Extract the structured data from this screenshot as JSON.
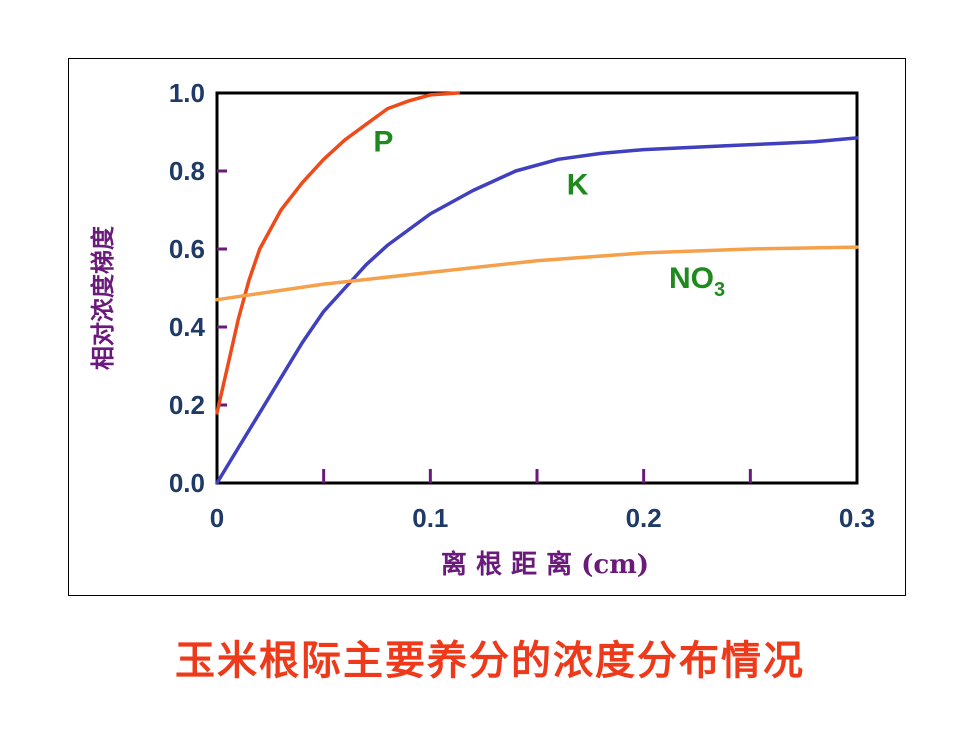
{
  "colors": {
    "P": "#ee4a1a",
    "K": "#3f3fbf",
    "NO3": "#f5a04a",
    "label_green": "#1e8a1e",
    "axis_title": "#6a1a7a",
    "tick_label": "#1f3a66",
    "tick_mark": "#6a1a7a",
    "caption": "#ee3a1a"
  },
  "caption": "玉米根际主要养分的浓度分布情况",
  "chart_data": {
    "type": "line",
    "xlabel": "离 根 距 离 (cm)",
    "ylabel": "相对浓度梯度",
    "xlim": [
      0,
      0.3
    ],
    "ylim": [
      0,
      1.0
    ],
    "x_ticks": [
      "0",
      "0.1",
      "0.2",
      "0.3"
    ],
    "y_ticks": [
      "0.0",
      "0.2",
      "0.4",
      "0.6",
      "0.8",
      "1.0"
    ],
    "grid": false,
    "series": [
      {
        "name": "P",
        "label_text": "P",
        "label_sub": "",
        "x": [
          0,
          0.005,
          0.01,
          0.015,
          0.02,
          0.03,
          0.04,
          0.05,
          0.06,
          0.07,
          0.08,
          0.09,
          0.1,
          0.113
        ],
        "y": [
          0.18,
          0.3,
          0.42,
          0.52,
          0.6,
          0.7,
          0.77,
          0.83,
          0.88,
          0.92,
          0.96,
          0.98,
          0.995,
          1.0
        ]
      },
      {
        "name": "K",
        "label_text": "K",
        "label_sub": "",
        "x": [
          0,
          0.01,
          0.02,
          0.03,
          0.04,
          0.05,
          0.06,
          0.07,
          0.08,
          0.09,
          0.1,
          0.12,
          0.14,
          0.16,
          0.18,
          0.2,
          0.22,
          0.24,
          0.26,
          0.28,
          0.3
        ],
        "y": [
          0.0,
          0.09,
          0.18,
          0.27,
          0.36,
          0.44,
          0.5,
          0.56,
          0.61,
          0.65,
          0.69,
          0.75,
          0.8,
          0.83,
          0.845,
          0.855,
          0.86,
          0.865,
          0.87,
          0.875,
          0.885
        ]
      },
      {
        "name": "NO3",
        "label_text": "NO",
        "label_sub": "3",
        "x": [
          0,
          0.05,
          0.1,
          0.15,
          0.2,
          0.25,
          0.3
        ],
        "y": [
          0.47,
          0.51,
          0.54,
          0.57,
          0.59,
          0.6,
          0.605
        ]
      }
    ]
  }
}
